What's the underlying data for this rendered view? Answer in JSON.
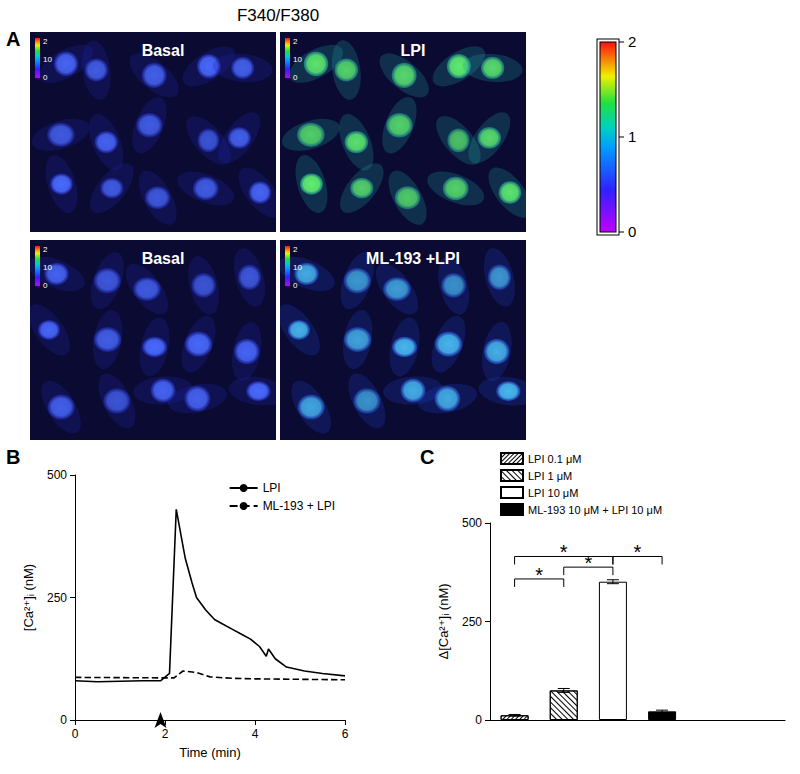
{
  "figure_title": "F340/F380",
  "panel_a": {
    "label": "A",
    "images": [
      {
        "label": "Basal"
      },
      {
        "label": "LPI"
      },
      {
        "label": "Basal"
      },
      {
        "label": "ML-193 +LPI"
      }
    ],
    "inset_labels": [
      "2",
      "10",
      "0"
    ],
    "colorbar": {
      "range": [
        0,
        2
      ],
      "ticks": [
        0,
        1,
        2
      ]
    }
  },
  "chart_data": [
    {
      "panel": "B",
      "type": "line",
      "x_label": "Time (min)",
      "y_label": "[Ca²⁺]ᵢ (nM)",
      "xlim": [
        0,
        6
      ],
      "xticks": [
        0,
        2,
        4,
        6
      ],
      "ylim": [
        0,
        500
      ],
      "yticks": [
        0,
        250,
        500
      ],
      "grid": false,
      "legend": "top-right",
      "arrow_x": 1.9,
      "series": [
        {
          "name": "LPI",
          "color": "#000000",
          "line_style": "solid",
          "x": [
            0,
            0.5,
            1,
            1.5,
            1.9,
            2.1,
            2.25,
            2.35,
            2.45,
            2.6,
            2.7,
            2.9,
            3.1,
            3.3,
            3.5,
            3.7,
            3.9,
            4.1,
            4.25,
            4.3,
            4.45,
            4.7,
            5.1,
            5.5,
            6
          ],
          "values": [
            80,
            78,
            79,
            80,
            80,
            95,
            430,
            380,
            330,
            280,
            250,
            225,
            205,
            195,
            185,
            175,
            165,
            150,
            130,
            145,
            125,
            108,
            100,
            95,
            90
          ]
        },
        {
          "name": "ML-193 + LPI",
          "color": "#000000",
          "line_style": "dashed",
          "x": [
            0,
            1.9,
            2.2,
            2.4,
            2.7,
            3.0,
            3.5,
            4,
            5,
            6
          ],
          "values": [
            87,
            86,
            86,
            100,
            97,
            88,
            85,
            84,
            83,
            82
          ]
        }
      ]
    },
    {
      "panel": "C",
      "type": "bar",
      "y_label": "Δ[Ca²⁺]ᵢ (nM)",
      "categories": [
        null,
        null,
        null,
        null,
        null,
        null
      ],
      "ylim": [
        0,
        500
      ],
      "yticks": [
        0,
        250,
        500
      ],
      "grid": false,
      "legend": "top-left",
      "series": [
        {
          "name": "LPI 0.1 μM",
          "color": "#ffffff",
          "values": [
            12,
            null,
            null,
            null,
            null,
            null
          ],
          "errors": [
            2,
            null,
            null,
            null,
            null,
            null
          ]
        },
        {
          "name": "LPI 1 μM",
          "color": "#ffffff",
          "values": [
            null,
            75,
            null,
            null,
            null,
            null
          ],
          "errors": [
            null,
            5,
            null,
            null,
            null,
            null
          ]
        },
        {
          "name": "LPI 10 μM",
          "color": "#ffffff",
          "values": [
            null,
            null,
            351,
            null,
            null,
            null
          ],
          "errors": [
            null,
            null,
            5,
            null,
            null,
            null
          ]
        },
        {
          "name": "ML-193 10 μM + LPI 10 μM",
          "color": "#000000",
          "values": [
            null,
            null,
            null,
            22,
            null,
            null
          ],
          "errors": [
            null,
            null,
            null,
            3,
            null,
            null
          ]
        }
      ],
      "annotations": [
        {
          "from": 0,
          "to": 2,
          "y": 415,
          "label": "*"
        },
        {
          "from": 1,
          "to": 2,
          "y": 388,
          "label": "*"
        },
        {
          "from": 0,
          "to": 1,
          "y": 358,
          "label": "*"
        },
        {
          "from": 2,
          "to": 3,
          "y": 415,
          "label": "*"
        }
      ]
    }
  ]
}
